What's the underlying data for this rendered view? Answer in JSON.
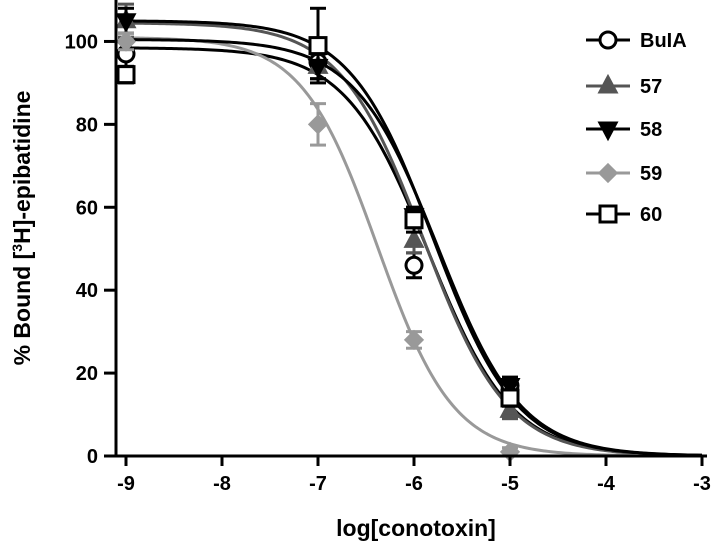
{
  "chart_data": {
    "type": "scatter",
    "title": "",
    "xlabel": "log[conotoxin]",
    "ylabel_parts": {
      "pre": "% Bound [",
      "sup": "3",
      "post": "H]-epibatidine"
    },
    "xlim": [
      -9,
      -3
    ],
    "ylim": [
      0,
      110
    ],
    "xticks": [
      -9,
      -8,
      -7,
      -6,
      -5,
      -4,
      -3
    ],
    "yticks": [
      0,
      20,
      40,
      60,
      80,
      100
    ],
    "x": [
      -9,
      -7,
      -6,
      -5
    ],
    "series": [
      {
        "name": "BuIA",
        "marker": "circle-open",
        "color": "#000000",
        "values": [
          97,
          95,
          46,
          17
        ],
        "errors": [
          4,
          4,
          3,
          2
        ],
        "fit": {
          "top": 98.5,
          "bottom": 0,
          "logIC50": -5.85,
          "hill": 1.0
        }
      },
      {
        "name": "57",
        "marker": "triangle-up",
        "color": "#555555",
        "values": [
          105,
          94,
          52,
          11
        ],
        "errors": [
          4,
          3,
          3,
          2
        ],
        "fit": {
          "top": 104.5,
          "bottom": 0,
          "logIC50": -5.9,
          "hill": 1.0
        }
      },
      {
        "name": "58",
        "marker": "triangle-down",
        "color": "#000000",
        "values": [
          105,
          94,
          58,
          17
        ],
        "errors": [
          3,
          3,
          2,
          2
        ],
        "fit": {
          "top": 105,
          "bottom": 0,
          "logIC50": -5.8,
          "hill": 1.0
        }
      },
      {
        "name": "59",
        "marker": "diamond",
        "color": "#999999",
        "values": [
          100,
          80,
          28,
          1
        ],
        "errors": [
          2,
          5,
          2,
          1
        ],
        "fit": {
          "top": 101,
          "bottom": 0,
          "logIC50": -6.38,
          "hill": 1.1
        }
      },
      {
        "name": "60",
        "marker": "square-open",
        "color": "#000000",
        "values": [
          92,
          99,
          57,
          14
        ],
        "errors": [
          2,
          9,
          3,
          2
        ],
        "fit": {
          "top": 100.5,
          "bottom": 0,
          "logIC50": -5.75,
          "hill": 1.0
        }
      }
    ],
    "legend_position": "top-right",
    "grid": false
  }
}
